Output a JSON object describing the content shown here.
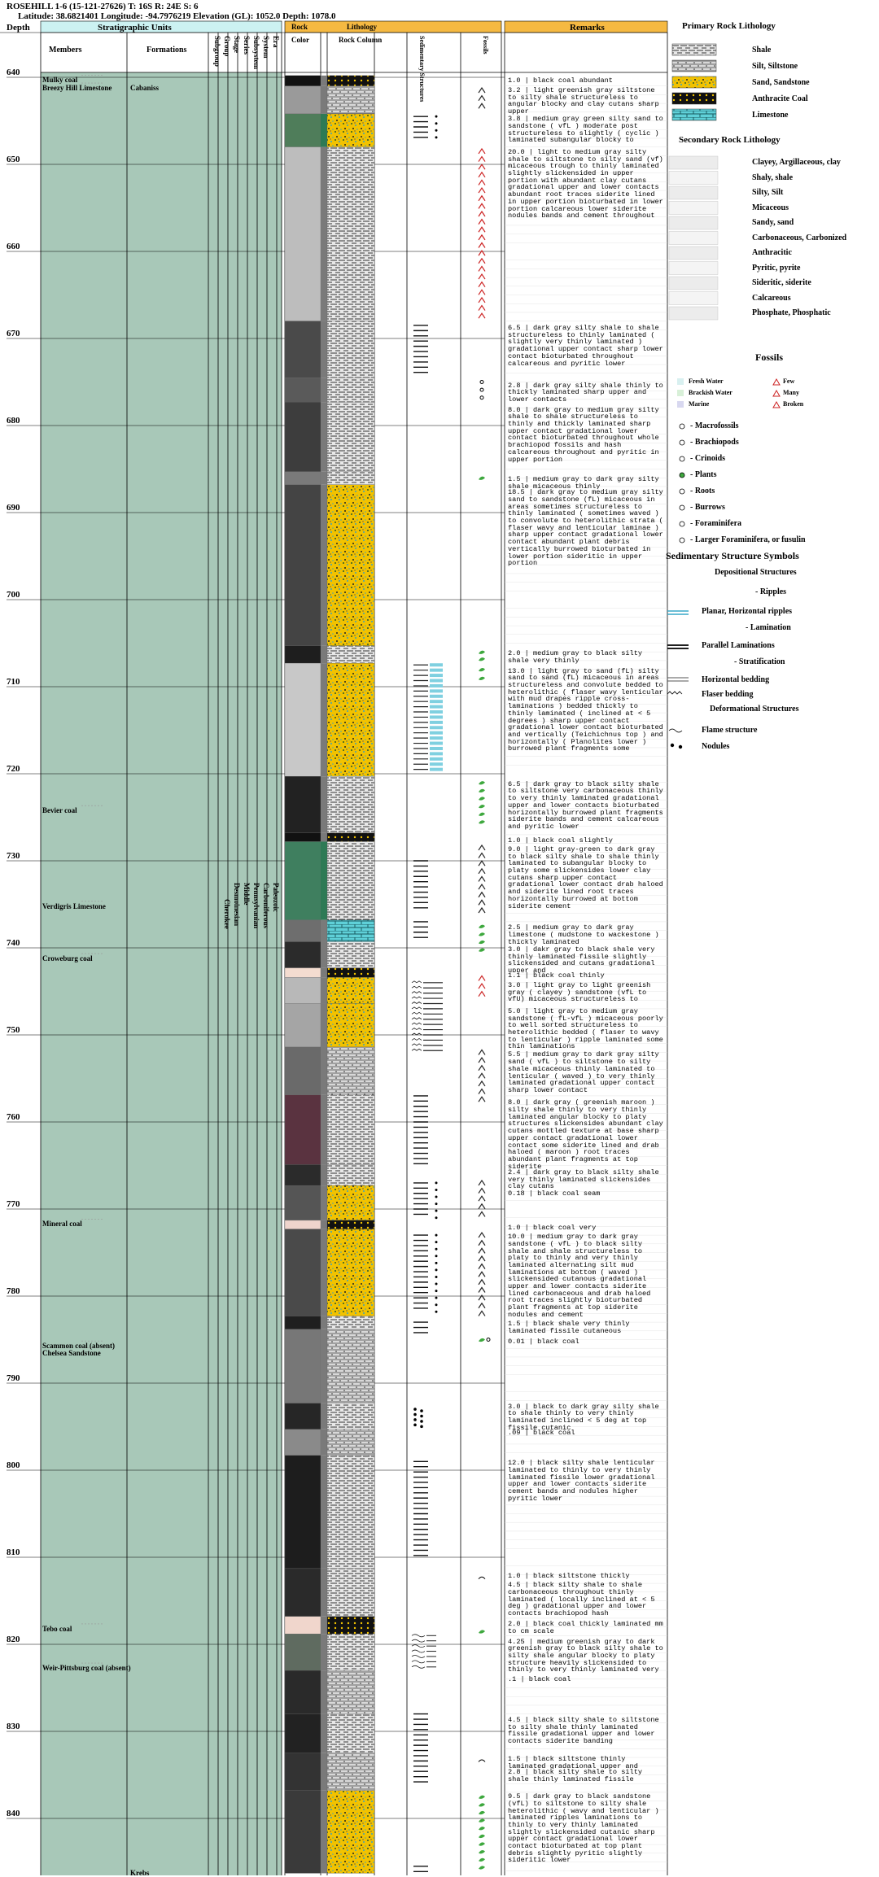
{
  "header": {
    "line1": "ROSEHILL 1-6 (15-121-27626) T: 16S R: 24E S: 6",
    "line2": "Latitude: 38.6821401 Longitude: -94.7976219 Elevation (GL): 1052.0 Depth: 1078.0"
  },
  "columns": {
    "depth": "Depth",
    "strat_units": "Stratigraphic Units",
    "members": "Members",
    "formations": "Formations",
    "subgroup": "Subgroup",
    "group": "Group",
    "stage": "Stage",
    "series": "Series",
    "subsystem": "Subsystem",
    "system": "System",
    "era": "Era",
    "rock": "Rock",
    "color": "Color",
    "lithology": "Lithology",
    "rock_column": "Rock Column",
    "sed_structures": "Sedimentary Structures",
    "fossils": "Fossils",
    "remarks": "Remarks"
  },
  "strat": {
    "cherokee": "Cherokee",
    "desmoinesian": "Desmoinesian",
    "middle": "Middle",
    "pennsylvanian": "Pennsylvanian",
    "carboniferous": "Carboniferous",
    "paleozoic": "Paleozoic"
  },
  "formations": [
    {
      "name": "Cabaniss",
      "depth": 641.5
    },
    {
      "name": "Krebs",
      "depth": 846.5
    }
  ],
  "members": [
    {
      "name": "Mulky coal",
      "depth": 640.6
    },
    {
      "name": "Breezy Hill Limestone",
      "depth": 641.5
    },
    {
      "name": "Bevier coal",
      "depth": 724.5
    },
    {
      "name": "Verdigris Limestone",
      "depth": 735.5
    },
    {
      "name": "Croweburg coal",
      "depth": 741.5
    },
    {
      "name": "Mineral coal",
      "depth": 772.0
    },
    {
      "name": "Scammon coal (absent)",
      "depth": 786.0
    },
    {
      "name": "Chelsea Sandstone",
      "depth": 786.8
    },
    {
      "name": "Tebo coal",
      "depth": 818.5
    },
    {
      "name": "Weir-Pittsburg coal (absent)",
      "depth": 823.0
    }
  ],
  "depth_axis": {
    "min": 639.0,
    "max": 847.0,
    "ticks": [
      640,
      650,
      660,
      670,
      680,
      690,
      700,
      710,
      720,
      730,
      740,
      750,
      760,
      770,
      780,
      790,
      800,
      810,
      820,
      830,
      840
    ]
  },
  "remarks": [
    {
      "depth": 640.2,
      "text": "1.0 | black coal abundant"
    },
    {
      "depth": 641.3,
      "text": "3.2 | light greenish gray siltstone to silty shale structureless to angular blocky and clay cutans sharp upper"
    },
    {
      "depth": 644.6,
      "text": "3.8 | medium gray green silty sand to sandstone ( vfL ) moderate post structureless to slightly ( cyclic ) laminated subangular blocky to"
    },
    {
      "depth": 648.4,
      "text": "20.0 | light to medium gray silty shale to siltstone to silty sand (vf) micaceous trough to thinly laminated slightly slickensided in upper portion with abundant clay cutans gradational upper and lower contacts abundant root traces siderite lined in upper portion bioturbated in lower portion calcareous lower siderite nodules bands and cement throughout"
    },
    {
      "depth": 668.6,
      "text": "6.5 | dark gray silty shale to shale structureless to thinly laminated ( slightly very thinly laminated ) gradational upper contact sharp lower contact bioturbated throughout calcareous and pyritic lower"
    },
    {
      "depth": 675.2,
      "text": "2.8 | dark gray silty shale thinly to thickly laminated sharp upper and lower contacts"
    },
    {
      "depth": 678.0,
      "text": "8.0 | dark gray to medium gray silty shale to shale structureless to thinly and thickly laminated sharp upper contact gradational lower contact bioturbated throughout whole brachiopod fossils and hash calcareous throughout and pyritic in upper portion"
    },
    {
      "depth": 686.0,
      "text": "1.5 | medium gray to dark gray silty shale micaceous thinly"
    },
    {
      "depth": 687.5,
      "text": "18.5 | dark gray to medium gray silty sand to sandstone (fL) micaceous in areas sometimes structureless to thinly laminated ( sometimes waved ) to convolute to heterolithic strata ( flaser wavy and lenticular laminae ) sharp upper contact gradational lower contact abundant plant debris vertically burrowed bioturbated in lower portion sideritic in upper portion"
    },
    {
      "depth": 706.0,
      "text": "2.0 | medium gray to black silty shale very thinly"
    },
    {
      "depth": 708.0,
      "text": "13.0 | light gray to sand (fL) silty sand to sand (fL) micaceous in areas structureless and convolute bedded to heterolithic ( flaser wavy lenticular with mud drapes ripple cross-laminations ) bedded thickly to thinly laminated ( inclined at < 5 degrees ) sharp upper contact gradational lower contact bioturbated and vertically (Teichichnus top ) and horizontally ( Planolites lower ) burrowed plant fragments some"
    },
    {
      "depth": 721.0,
      "text": "6.5 | dark gray to black silty shale to siltstone very carbonaceous thinly to very thinly laminated gradational upper and lower contacts bioturbated horizontally burrowed plant fragments siderite bands and cement calcareous and pyritic lower"
    },
    {
      "depth": 727.5,
      "text": "1.0 | black coal slightly"
    },
    {
      "depth": 728.5,
      "text": "9.0 | light gray-green to dark gray to black silty shale to shale thinly laminated to subangular blocky to platy some slickensides lower clay cutans sharp upper contact gradational lower contact drab haloed and siderite lined root traces horizontally burrowed at bottom siderite cement"
    },
    {
      "depth": 737.5,
      "text": "2.5 | medium gray to dark gray limestone ( mudstone to wackestone ) thickly laminated"
    },
    {
      "depth": 740.0,
      "text": "3.0 | dakr gray to black shale very thinly laminated fissile slightly slickensided and cutans gradational upper and"
    },
    {
      "depth": 743.0,
      "text": "1.1 | black coal thinly"
    },
    {
      "depth": 744.1,
      "text": "3.0 | light gray to light greenish gray ( clayey ) sandstone (vfL to vfU) micaceous structureless to"
    },
    {
      "depth": 747.1,
      "text": "5.0 | light gray to medium gray sandstone ( fL-vfL ) micaceous poorly to well sorted structureless to heterolithic bedded ( flaser to wavy to lenticular ) ripple laminated some thin laminations"
    },
    {
      "depth": 752.1,
      "text": "5.5 | medium gray to dark gray silty sand ( vfL ) to siltstone to silty shale micaceous thinly laminated to lenticular ( waved ) to very thinly laminated gradational upper contact sharp lower contact"
    },
    {
      "depth": 757.6,
      "text": "8.0 | dark gray ( greenish maroon ) silty shale thinly to very thinly laminated angular blocky to platy structures slickensides abundant clay cutans mottled texture at base sharp upper contact gradational lower contact some siderite lined and drab haloed ( maroon ) root traces abundant plant fragments at top siderite"
    },
    {
      "depth": 765.6,
      "text": "2.4 | dark gray to black silty shale very thinly laminated slickensides clay cutans"
    },
    {
      "depth": 768.0,
      "text": "0.18 | black coal seam"
    },
    {
      "depth": 772.0,
      "text": "1.0 | black coal very"
    },
    {
      "depth": 773.0,
      "text": "10.0 | medium gray to dark gray sandstone ( vfL ) to black silty shale and shale structureless to platy to thinly and very thinly laminated alternating silt mud laminations at bottom ( waved ) slickensided cutanous gradational upper and lower contacts siderite lined carbonaceous and drab haloed root traces slightly bioturbated plant fragments at top siderite nodules and cement"
    },
    {
      "depth": 783.0,
      "text": "1.5 | black shale very thinly laminated fissile cutaneous"
    },
    {
      "depth": 785.0,
      "text": "0.01 | black coal"
    },
    {
      "depth": 792.5,
      "text": "3.0 | black to dark gray silty shale to shale thinly to very thinly laminated inclined < 5 deg at top fissile cutanic"
    },
    {
      "depth": 795.5,
      "text": ".09 | black coal"
    },
    {
      "depth": 799.0,
      "text": "12.0 | black silty shale lenticular laminated to thinly to very thinly laminated fissile lower gradational upper and lower contacts siderite cement bands and nodules higher pyritic lower"
    },
    {
      "depth": 812.0,
      "text": "1.0 | black siltstone thickly"
    },
    {
      "depth": 813.0,
      "text": "4.5 | black silty shale to shale carbonaceous throughout thinly laminated ( locally inclined at < 5 deg ) gradational upper and lower contacts brachiopod hash"
    },
    {
      "depth": 817.5,
      "text": "2.0 | black coal thickly laminated mm to cm scale"
    },
    {
      "depth": 819.5,
      "text": "4.25 | medium greenish gray to dark greenish gray to black silty shale to silty shale angular blocky to platy structure heavily slickensided to thinly to very thinly laminated very"
    },
    {
      "depth": 823.8,
      "text": ".1 | black coal"
    },
    {
      "depth": 828.5,
      "text": "4.5 | black silty shale to siltstone to silty shale thinly laminated fissile gradational upper and lower contacts siderite banding"
    },
    {
      "depth": 833.0,
      "text": "1.5 | black siltstone thinly laminated gradational upper and"
    },
    {
      "depth": 834.5,
      "text": "2.8 | black silty shale to silty shale thinly laminated fissile"
    },
    {
      "depth": 837.3,
      "text": "9.5 | dark gray to black sandstone (vfL) to siltstone to silty shale heterolithic ( wavy and lenticular ) laminated ripples laminations to thinly to very thinly laminated slightly slickensided cutanic sharp upper contact gradational lower contact bioturbated at top plant debris slightly pyritic slightly sideritic lower"
    }
  ],
  "units": [
    {
      "top": 639.8,
      "bot": 641.0,
      "lith": "coal",
      "color": "#111111"
    },
    {
      "top": 641.0,
      "bot": 644.2,
      "lith": "silt",
      "color": "#9a9a9a"
    },
    {
      "top": 644.2,
      "bot": 648.0,
      "lith": "sand",
      "color": "#4f7d5a"
    },
    {
      "top": 648.0,
      "bot": 668.0,
      "lith": "shale",
      "color": "#bdbdbd"
    },
    {
      "top": 668.0,
      "bot": 674.5,
      "lith": "shale",
      "color": "#4a4a4a"
    },
    {
      "top": 674.5,
      "bot": 677.3,
      "lith": "shale",
      "color": "#5a5a5a"
    },
    {
      "top": 677.3,
      "bot": 685.3,
      "lith": "shale",
      "color": "#3d3d3d"
    },
    {
      "top": 685.3,
      "bot": 686.8,
      "lith": "shale",
      "color": "#7a7a7a"
    },
    {
      "top": 686.8,
      "bot": 705.3,
      "lith": "sand",
      "color": "#444444"
    },
    {
      "top": 705.3,
      "bot": 707.3,
      "lith": "shale",
      "color": "#1e1e1e"
    },
    {
      "top": 707.3,
      "bot": 720.3,
      "lith": "sand",
      "color": "#c8c8c8"
    },
    {
      "top": 720.3,
      "bot": 726.8,
      "lith": "shale",
      "color": "#222222"
    },
    {
      "top": 726.8,
      "bot": 727.8,
      "lith": "coal",
      "color": "#111111"
    },
    {
      "top": 727.8,
      "bot": 736.8,
      "lith": "shale",
      "color": "#3f7f5f"
    },
    {
      "top": 736.8,
      "bot": 739.3,
      "lith": "lime",
      "color": "#6e6e6e"
    },
    {
      "top": 739.3,
      "bot": 742.3,
      "lith": "shale",
      "color": "#2b2b2b"
    },
    {
      "top": 742.3,
      "bot": 743.4,
      "lith": "coal",
      "color": "#f4dcd0"
    },
    {
      "top": 743.4,
      "bot": 746.4,
      "lith": "sand",
      "color": "#b8b8b8"
    },
    {
      "top": 746.4,
      "bot": 751.4,
      "lith": "sand",
      "color": "#a5a5a5"
    },
    {
      "top": 751.4,
      "bot": 756.9,
      "lith": "silt",
      "color": "#6a6a6a"
    },
    {
      "top": 756.9,
      "bot": 764.9,
      "lith": "shale",
      "color": "#5a3340"
    },
    {
      "top": 764.9,
      "bot": 767.3,
      "lith": "shale",
      "color": "#2b2b2b"
    },
    {
      "top": 767.3,
      "bot": 771.3,
      "lith": "sand",
      "color": "#555555"
    },
    {
      "top": 771.3,
      "bot": 772.3,
      "lith": "coal",
      "color": "#efd4cc"
    },
    {
      "top": 772.3,
      "bot": 782.3,
      "lith": "sand",
      "color": "#4a4a4a"
    },
    {
      "top": 782.3,
      "bot": 783.8,
      "lith": "shale",
      "color": "#1f1f1f"
    },
    {
      "top": 783.8,
      "bot": 792.3,
      "lith": "silt",
      "color": "#777777"
    },
    {
      "top": 792.3,
      "bot": 795.3,
      "lith": "shale",
      "color": "#262626"
    },
    {
      "top": 795.3,
      "bot": 798.3,
      "lith": "silt",
      "color": "#8a8a8a"
    },
    {
      "top": 798.3,
      "bot": 811.3,
      "lith": "shale",
      "color": "#1d1d1d"
    },
    {
      "top": 811.3,
      "bot": 816.8,
      "lith": "shale",
      "color": "#2a2a2a"
    },
    {
      "top": 816.8,
      "bot": 818.8,
      "lith": "coal",
      "color": "#f0d6cc"
    },
    {
      "top": 818.8,
      "bot": 823.0,
      "lith": "shale",
      "color": "#5f6b60"
    },
    {
      "top": 823.0,
      "bot": 828.0,
      "lith": "silt",
      "color": "#2a2a2a"
    },
    {
      "top": 828.0,
      "bot": 832.5,
      "lith": "shale",
      "color": "#222222"
    },
    {
      "top": 832.5,
      "bot": 836.8,
      "lith": "silt",
      "color": "#333333"
    },
    {
      "top": 836.8,
      "bot": 846.3,
      "lith": "sand",
      "color": "#3a3a3a"
    }
  ],
  "legend": {
    "primary_title": "Primary Rock Lithology",
    "primary": [
      {
        "name": "Shale",
        "pattern": "shale"
      },
      {
        "name": "Silt, Siltstone",
        "pattern": "silt"
      },
      {
        "name": "Sand, Sandstone",
        "pattern": "sand"
      },
      {
        "name": "Anthracite Coal",
        "pattern": "coal"
      },
      {
        "name": "Limestone",
        "pattern": "lime"
      }
    ],
    "secondary_title": "Secondary Rock Lithology",
    "secondary": [
      {
        "name": "Clayey, Argillaceous, clay"
      },
      {
        "name": "Shaly, shale"
      },
      {
        "name": "Silty, Silt"
      },
      {
        "name": "Micaceous"
      },
      {
        "name": "Sandy, sand"
      },
      {
        "name": "Carbonaceous, Carbonized"
      },
      {
        "name": "Anthracitic"
      },
      {
        "name": "Pyritic, pyrite"
      },
      {
        "name": "Sideritic, siderite"
      },
      {
        "name": "Calcareous"
      },
      {
        "name": "Phosphate, Phosphatic"
      }
    ],
    "fossils_title": "Fossils",
    "fossil_env": [
      "Fresh Water",
      "Brackish Water",
      "Marine"
    ],
    "fossil_abund": [
      "Few",
      "Many",
      "Broken"
    ],
    "fossil_types": [
      "- Macrofossils",
      "- Brachiopods",
      "- Crinoids",
      "- Plants",
      "- Roots",
      "- Burrows",
      "- Foraminifera",
      "- Larger Foraminifera, or fusulin"
    ],
    "sed_title": "Sedimentary Structure Symbols",
    "depositional": "Depositional Structures",
    "ripples": "- Ripples",
    "planar": "Planar, Horizontal ripples",
    "lamination": "- Lamination",
    "parallel": "Parallel Laminations",
    "stratification": "- Stratification",
    "horizontal": "Horizontal bedding",
    "flaser": "Flaser bedding",
    "deformational": "Deformational Structures",
    "flame": "Flame structure",
    "nodules": "Nodules"
  },
  "colors": {
    "header_cyan": "#ccf2f2",
    "header_orange": "#f5b942",
    "strat_green": "#a8c8b8",
    "shale_fill": "#ffffff",
    "sand_fill": "#f2c200",
    "lime_fill": "#5fd0d8",
    "plant_green": "#3ea83e",
    "root_red": "#cc2222"
  }
}
